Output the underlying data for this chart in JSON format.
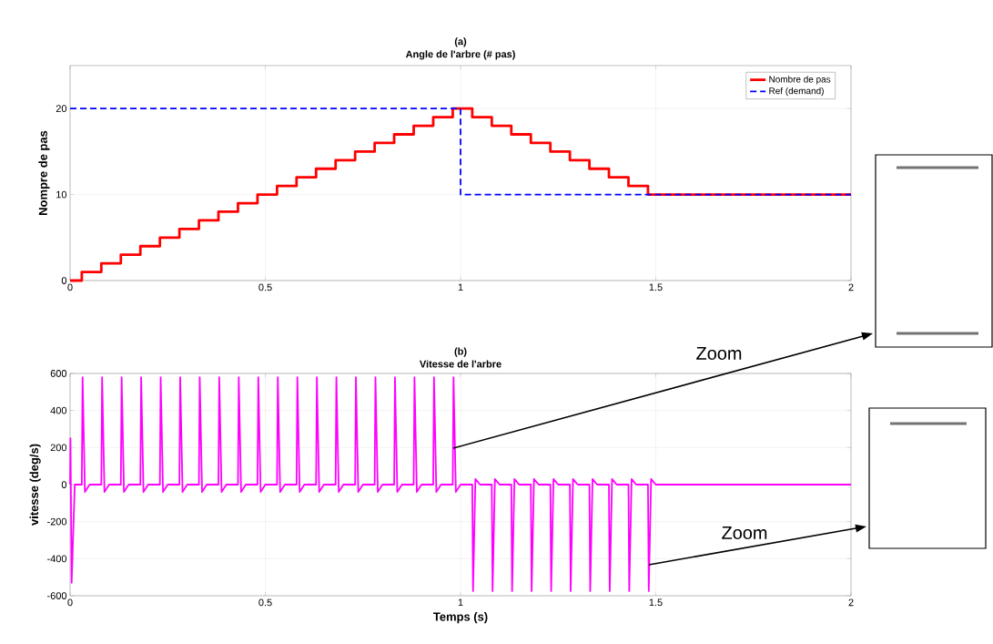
{
  "chart_data": [
    {
      "type": "step",
      "title": "(a)",
      "subtitle": "Angle de l'arbre (# pas)",
      "ylabel": "Nompre de pas",
      "xlim": [
        0,
        2
      ],
      "xticks": [
        0,
        0.5,
        1,
        1.5,
        2
      ],
      "ylim": [
        0,
        25
      ],
      "yticks": [
        0,
        10,
        20
      ],
      "grid": true,
      "legend": "top right",
      "series": [
        {
          "name": "Nombre de pas",
          "color": "#ff0000",
          "line_style": "solid",
          "x": [
            0,
            0.03,
            0.08,
            0.13,
            0.18,
            0.23,
            0.28,
            0.33,
            0.38,
            0.43,
            0.48,
            0.53,
            0.58,
            0.63,
            0.68,
            0.73,
            0.78,
            0.83,
            0.88,
            0.93,
            0.98,
            1.03,
            1.08,
            1.13,
            1.18,
            1.23,
            1.28,
            1.33,
            1.38,
            1.43,
            1.48,
            2
          ],
          "values": [
            0,
            1,
            2,
            3,
            4,
            5,
            6,
            7,
            8,
            9,
            10,
            11,
            12,
            13,
            14,
            15,
            16,
            17,
            18,
            19,
            20,
            19,
            18,
            17,
            16,
            15,
            14,
            13,
            12,
            11,
            10,
            10
          ]
        },
        {
          "name": "Ref (demand)",
          "color": "#0000ff",
          "line_style": "dashed",
          "x": [
            0,
            1,
            2
          ],
          "values": [
            20,
            10,
            10
          ]
        }
      ]
    },
    {
      "type": "line",
      "title": "(b)",
      "subtitle": "Vitesse de l'arbre",
      "xlabel": "Temps (s)",
      "ylabel": "vitesse (deg/s)",
      "xlim": [
        0,
        2
      ],
      "xticks": [
        0,
        0.5,
        1,
        1.5,
        2
      ],
      "ylim": [
        -600,
        600
      ],
      "yticks": [
        -600,
        -400,
        -200,
        0,
        200,
        400,
        600
      ],
      "grid": true,
      "annotations": [
        "Zoom",
        "Zoom"
      ],
      "series": [
        {
          "color": "#ff00ff",
          "line_style": "solid",
          "x": [
            0,
            0.001,
            0.004,
            0.012,
            0.03,
            0.032,
            0.038,
            0.05,
            0.08,
            0.082,
            0.088,
            0.1,
            0.13,
            0.132,
            0.138,
            0.15,
            0.18,
            0.182,
            0.188,
            0.2,
            0.23,
            0.232,
            0.238,
            0.25,
            0.28,
            0.282,
            0.288,
            0.3,
            0.33,
            0.332,
            0.338,
            0.35,
            0.38,
            0.382,
            0.388,
            0.4,
            0.43,
            0.432,
            0.438,
            0.45,
            0.48,
            0.482,
            0.488,
            0.5,
            0.53,
            0.532,
            0.538,
            0.55,
            0.58,
            0.582,
            0.588,
            0.6,
            0.63,
            0.632,
            0.638,
            0.65,
            0.68,
            0.682,
            0.688,
            0.7,
            0.73,
            0.732,
            0.738,
            0.75,
            0.78,
            0.782,
            0.788,
            0.8,
            0.83,
            0.832,
            0.838,
            0.85,
            0.88,
            0.882,
            0.888,
            0.9,
            0.93,
            0.932,
            0.938,
            0.95,
            0.98,
            0.982,
            0.988,
            1.0,
            1.03,
            1.032,
            1.038,
            1.05,
            1.08,
            1.082,
            1.088,
            1.1,
            1.13,
            1.132,
            1.138,
            1.15,
            1.18,
            1.182,
            1.188,
            1.2,
            1.23,
            1.232,
            1.238,
            1.25,
            1.28,
            1.282,
            1.288,
            1.3,
            1.33,
            1.332,
            1.338,
            1.35,
            1.38,
            1.382,
            1.388,
            1.4,
            1.43,
            1.432,
            1.438,
            1.45,
            1.48,
            1.482,
            1.488,
            1.5,
            2
          ],
          "values": [
            0,
            250,
            -530,
            0,
            0,
            580,
            -40,
            0,
            0,
            580,
            -40,
            0,
            0,
            580,
            -40,
            0,
            0,
            580,
            -40,
            0,
            0,
            580,
            -40,
            0,
            0,
            580,
            -40,
            0,
            0,
            580,
            -40,
            0,
            0,
            580,
            -40,
            0,
            0,
            580,
            -40,
            0,
            0,
            580,
            -40,
            0,
            0,
            580,
            -40,
            0,
            0,
            580,
            -40,
            0,
            0,
            580,
            -40,
            0,
            0,
            580,
            -40,
            0,
            0,
            580,
            -40,
            0,
            0,
            580,
            -40,
            0,
            0,
            580,
            -40,
            0,
            0,
            580,
            -40,
            0,
            0,
            580,
            -40,
            0,
            0,
            580,
            -40,
            0,
            0,
            -575,
            30,
            0,
            0,
            -575,
            30,
            0,
            0,
            -575,
            30,
            0,
            0,
            -575,
            30,
            0,
            0,
            -575,
            30,
            0,
            0,
            -575,
            30,
            0,
            0,
            -575,
            30,
            0,
            0,
            -575,
            30,
            0,
            0,
            -575,
            30,
            0,
            0,
            -575,
            30,
            0,
            0
          ]
        }
      ]
    }
  ]
}
